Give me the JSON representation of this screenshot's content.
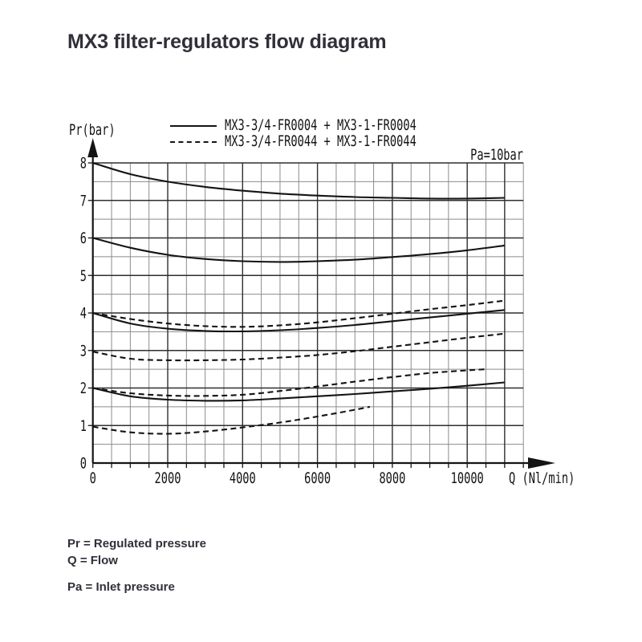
{
  "page": {
    "title": "MX3 filter-regulators flow diagram"
  },
  "colors": {
    "background": "#ffffff",
    "text": "#30303a",
    "chart_ink": "#141414",
    "grid_minor": "#8c8c8c",
    "grid_major": "#2f2f2f"
  },
  "legend": {
    "items": [
      {
        "label": "MX3-3/4-FR0004 + MX3-1-FR0004",
        "line": "solid"
      },
      {
        "label": "MX3-3/4-FR0044 + MX3-1-FR0044",
        "line": "dashed"
      }
    ]
  },
  "footer": {
    "line1": "Pr = Regulated pressure",
    "line2": "Q = Flow",
    "line3": "Pa = Inlet pressure"
  },
  "chart_data": {
    "type": "line",
    "title": "MX3 filter-regulators flow diagram",
    "xlabel": "Q (Nl/min)",
    "ylabel": "Pr(bar)",
    "annotation": "Pa=10bar",
    "xlim": [
      0,
      11500
    ],
    "ylim": [
      0,
      8
    ],
    "x_major_ticks": [
      0,
      2000,
      4000,
      6000,
      8000,
      10000
    ],
    "x_minor_step": 500,
    "y_major_ticks": [
      0,
      1,
      2,
      3,
      4,
      5,
      6,
      7,
      8
    ],
    "y_minor_step": 0.5,
    "grid": true,
    "legend_position": "top-left",
    "series": [
      {
        "name": "fr0004-8bar",
        "group": "MX3-3/4-FR0004 + MX3-1-FR0004",
        "line": "solid",
        "start_pr_bar": 8,
        "x": [
          0,
          1000,
          2000,
          3000,
          4000,
          5000,
          6000,
          7000,
          8000,
          9000,
          10000,
          11000
        ],
        "y": [
          8.0,
          7.7,
          7.5,
          7.36,
          7.26,
          7.18,
          7.13,
          7.09,
          7.07,
          7.05,
          7.05,
          7.07
        ]
      },
      {
        "name": "fr0004-6bar",
        "group": "MX3-3/4-FR0004 + MX3-1-FR0004",
        "line": "solid",
        "start_pr_bar": 6,
        "x": [
          0,
          1000,
          2000,
          3000,
          4000,
          5000,
          6000,
          7000,
          8000,
          9000,
          10000,
          11000
        ],
        "y": [
          6.0,
          5.74,
          5.55,
          5.44,
          5.38,
          5.36,
          5.38,
          5.42,
          5.49,
          5.57,
          5.67,
          5.8
        ]
      },
      {
        "name": "fr0004-4bar",
        "group": "MX3-3/4-FR0004 + MX3-1-FR0004",
        "line": "solid",
        "start_pr_bar": 4,
        "x": [
          0,
          1000,
          2000,
          3000,
          4000,
          5000,
          6000,
          7000,
          8000,
          9000,
          10000,
          11000
        ],
        "y": [
          4.0,
          3.72,
          3.58,
          3.52,
          3.51,
          3.54,
          3.6,
          3.68,
          3.78,
          3.88,
          3.98,
          4.08
        ]
      },
      {
        "name": "fr0004-2bar",
        "group": "MX3-3/4-FR0004 + MX3-1-FR0004",
        "line": "solid",
        "start_pr_bar": 2,
        "x": [
          0,
          1000,
          2000,
          3000,
          4000,
          5000,
          6000,
          7000,
          8000,
          9000,
          10000,
          11000
        ],
        "y": [
          2.0,
          1.78,
          1.69,
          1.66,
          1.67,
          1.72,
          1.78,
          1.84,
          1.91,
          1.98,
          2.06,
          2.15
        ]
      },
      {
        "name": "fr0044-4bar",
        "group": "MX3-3/4-FR0044 + MX3-1-FR0044",
        "line": "dashed",
        "start_pr_bar": 4,
        "x": [
          0,
          1000,
          2000,
          3000,
          4000,
          5000,
          6000,
          7000,
          8000,
          9000,
          10000,
          11000
        ],
        "y": [
          4.0,
          3.84,
          3.72,
          3.65,
          3.63,
          3.67,
          3.75,
          3.86,
          3.98,
          4.1,
          4.21,
          4.33
        ]
      },
      {
        "name": "fr0044-3bar",
        "group": "MX3-3/4-FR0044 + MX3-1-FR0044",
        "line": "dashed",
        "start_pr_bar": 3,
        "x": [
          0,
          1000,
          2000,
          3000,
          4000,
          5000,
          6000,
          7000,
          8000,
          9000,
          10000,
          11000
        ],
        "y": [
          2.97,
          2.78,
          2.74,
          2.74,
          2.76,
          2.81,
          2.88,
          2.98,
          3.1,
          3.22,
          3.34,
          3.45
        ]
      },
      {
        "name": "fr0044-2bar",
        "group": "MX3-3/4-FR0044 + MX3-1-FR0044",
        "line": "dashed",
        "start_pr_bar": 2,
        "x": [
          0,
          1000,
          2000,
          3000,
          4000,
          5000,
          6000,
          7000,
          8000,
          9000,
          10000,
          10500
        ],
        "y": [
          2.0,
          1.86,
          1.8,
          1.79,
          1.82,
          1.92,
          2.04,
          2.17,
          2.29,
          2.4,
          2.47,
          2.5
        ]
      },
      {
        "name": "fr0044-1bar",
        "group": "MX3-3/4-FR0044 + MX3-1-FR0044",
        "line": "dashed",
        "start_pr_bar": 1,
        "x": [
          0,
          1000,
          2000,
          3000,
          4000,
          5000,
          6000,
          7000,
          7400
        ],
        "y": [
          0.97,
          0.82,
          0.78,
          0.84,
          0.95,
          1.08,
          1.24,
          1.42,
          1.5
        ]
      }
    ]
  }
}
